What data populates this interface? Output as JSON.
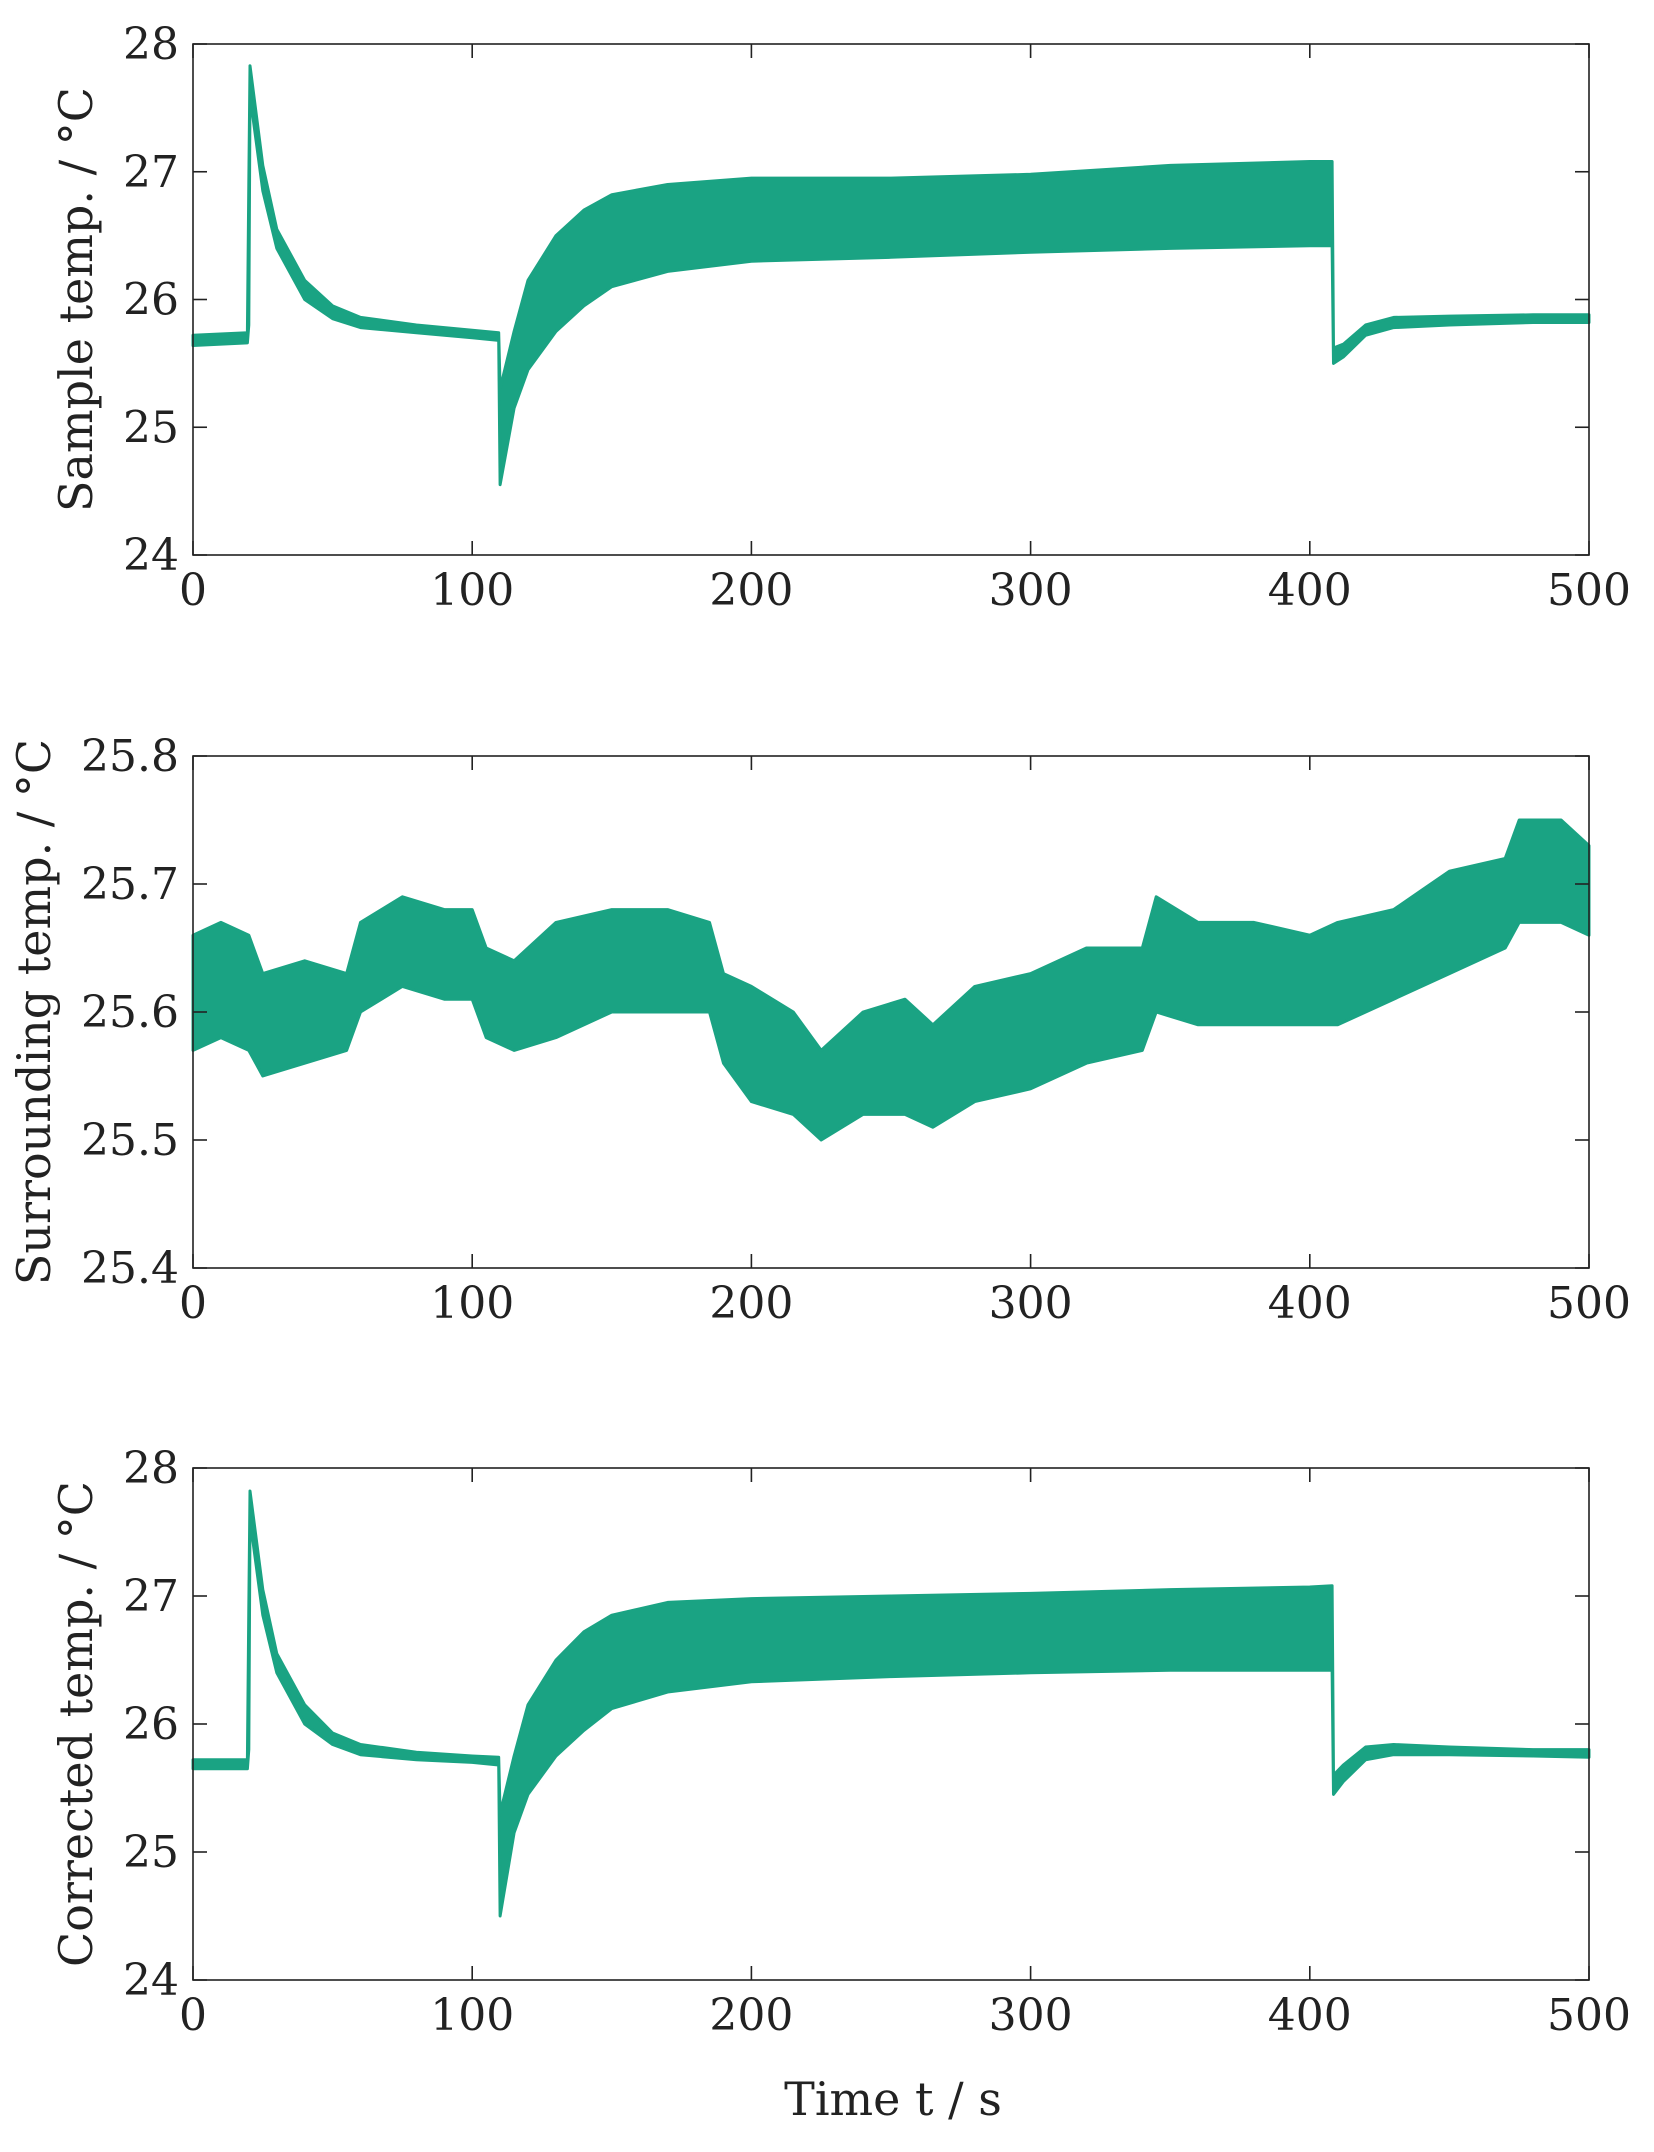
{
  "colors": {
    "series": "#1aa383",
    "axis": "#222222",
    "background": "#ffffff"
  },
  "x_axis_label_text": "Time t / s",
  "chart_data": [
    {
      "type": "line",
      "title": "",
      "ylabel": "Sample temp.  / °C",
      "xlabel": "",
      "xlim": [
        0,
        500
      ],
      "ylim": [
        24,
        28
      ],
      "xticks": [
        0,
        100,
        200,
        300,
        400,
        500
      ],
      "yticks": [
        24,
        25,
        26,
        27,
        28
      ],
      "xtick_labels": [
        "0",
        "100",
        "200",
        "300",
        "400",
        "500"
      ],
      "ytick_labels": [
        "24",
        "25",
        "26",
        "27",
        "28"
      ],
      "grid": false,
      "series": [
        {
          "name": "Sample temperature",
          "lower": [
            [
              0,
              25.64
            ],
            [
              19.5,
              25.66
            ],
            [
              20,
              25.8
            ],
            [
              20.4,
              27.6
            ],
            [
              25,
              26.85
            ],
            [
              30,
              26.4
            ],
            [
              40,
              26.0
            ],
            [
              50,
              25.85
            ],
            [
              60,
              25.78
            ],
            [
              80,
              25.74
            ],
            [
              100,
              25.7
            ],
            [
              109.5,
              25.68
            ],
            [
              110,
              24.55
            ],
            [
              115,
              25.15
            ],
            [
              120,
              25.45
            ],
            [
              130,
              25.75
            ],
            [
              140,
              25.95
            ],
            [
              150,
              26.1
            ],
            [
              170,
              26.22
            ],
            [
              200,
              26.3
            ],
            [
              250,
              26.33
            ],
            [
              300,
              26.37
            ],
            [
              350,
              26.4
            ],
            [
              400,
              26.42
            ],
            [
              408,
              26.42
            ],
            [
              408.5,
              25.5
            ],
            [
              412,
              25.55
            ],
            [
              420,
              25.72
            ],
            [
              430,
              25.78
            ],
            [
              450,
              25.8
            ],
            [
              480,
              25.82
            ],
            [
              500,
              25.82
            ]
          ],
          "upper": [
            [
              0,
              25.72
            ],
            [
              19.5,
              25.74
            ],
            [
              20,
              26.9
            ],
            [
              20.4,
              27.83
            ],
            [
              25,
              27.05
            ],
            [
              30,
              26.55
            ],
            [
              40,
              26.15
            ],
            [
              50,
              25.95
            ],
            [
              60,
              25.86
            ],
            [
              80,
              25.8
            ],
            [
              100,
              25.76
            ],
            [
              109.5,
              25.74
            ],
            [
              110,
              25.3
            ],
            [
              115,
              25.75
            ],
            [
              120,
              26.15
            ],
            [
              130,
              26.5
            ],
            [
              140,
              26.7
            ],
            [
              150,
              26.82
            ],
            [
              170,
              26.9
            ],
            [
              200,
              26.95
            ],
            [
              250,
              26.95
            ],
            [
              300,
              26.98
            ],
            [
              350,
              27.05
            ],
            [
              400,
              27.08
            ],
            [
              408,
              27.08
            ],
            [
              408.5,
              25.62
            ],
            [
              412,
              25.65
            ],
            [
              420,
              25.8
            ],
            [
              430,
              25.86
            ],
            [
              450,
              25.87
            ],
            [
              480,
              25.88
            ],
            [
              500,
              25.88
            ]
          ]
        }
      ]
    },
    {
      "type": "line",
      "title": "",
      "ylabel": "Surrounding temp.  / °C",
      "xlabel": "",
      "xlim": [
        0,
        500
      ],
      "ylim": [
        25.4,
        25.8
      ],
      "xticks": [
        0,
        100,
        200,
        300,
        400,
        500
      ],
      "yticks": [
        25.4,
        25.5,
        25.6,
        25.7,
        25.8
      ],
      "xtick_labels": [
        "0",
        "100",
        "200",
        "300",
        "400",
        "500"
      ],
      "ytick_labels": [
        "25.4",
        "25.5",
        "25.6",
        "25.7",
        "25.8"
      ],
      "grid": false,
      "series": [
        {
          "name": "Surrounding temperature",
          "lower": [
            [
              0,
              25.57
            ],
            [
              10,
              25.58
            ],
            [
              20,
              25.57
            ],
            [
              25,
              25.55
            ],
            [
              40,
              25.56
            ],
            [
              55,
              25.57
            ],
            [
              60,
              25.6
            ],
            [
              75,
              25.62
            ],
            [
              90,
              25.61
            ],
            [
              100,
              25.61
            ],
            [
              105,
              25.58
            ],
            [
              115,
              25.57
            ],
            [
              130,
              25.58
            ],
            [
              150,
              25.6
            ],
            [
              170,
              25.6
            ],
            [
              185,
              25.6
            ],
            [
              190,
              25.56
            ],
            [
              200,
              25.53
            ],
            [
              215,
              25.52
            ],
            [
              225,
              25.5
            ],
            [
              240,
              25.52
            ],
            [
              255,
              25.52
            ],
            [
              265,
              25.51
            ],
            [
              280,
              25.53
            ],
            [
              300,
              25.54
            ],
            [
              320,
              25.56
            ],
            [
              340,
              25.57
            ],
            [
              345,
              25.6
            ],
            [
              360,
              25.59
            ],
            [
              380,
              25.59
            ],
            [
              400,
              25.59
            ],
            [
              410,
              25.59
            ],
            [
              430,
              25.61
            ],
            [
              450,
              25.63
            ],
            [
              470,
              25.65
            ],
            [
              475,
              25.67
            ],
            [
              490,
              25.67
            ],
            [
              500,
              25.66
            ]
          ],
          "upper": [
            [
              0,
              25.66
            ],
            [
              10,
              25.67
            ],
            [
              20,
              25.66
            ],
            [
              25,
              25.63
            ],
            [
              40,
              25.64
            ],
            [
              55,
              25.63
            ],
            [
              60,
              25.67
            ],
            [
              75,
              25.69
            ],
            [
              90,
              25.68
            ],
            [
              100,
              25.68
            ],
            [
              105,
              25.65
            ],
            [
              115,
              25.64
            ],
            [
              130,
              25.67
            ],
            [
              150,
              25.68
            ],
            [
              170,
              25.68
            ],
            [
              185,
              25.67
            ],
            [
              190,
              25.63
            ],
            [
              200,
              25.62
            ],
            [
              215,
              25.6
            ],
            [
              225,
              25.57
            ],
            [
              240,
              25.6
            ],
            [
              255,
              25.61
            ],
            [
              265,
              25.59
            ],
            [
              280,
              25.62
            ],
            [
              300,
              25.63
            ],
            [
              320,
              25.65
            ],
            [
              340,
              25.65
            ],
            [
              345,
              25.69
            ],
            [
              360,
              25.67
            ],
            [
              380,
              25.67
            ],
            [
              400,
              25.66
            ],
            [
              410,
              25.67
            ],
            [
              430,
              25.68
            ],
            [
              450,
              25.71
            ],
            [
              470,
              25.72
            ],
            [
              475,
              25.75
            ],
            [
              490,
              25.75
            ],
            [
              500,
              25.73
            ]
          ]
        }
      ]
    },
    {
      "type": "line",
      "title": "",
      "ylabel": "Corrected temp.  / °C",
      "xlabel": "Time t / s",
      "xlim": [
        0,
        500
      ],
      "ylim": [
        24,
        28
      ],
      "xticks": [
        0,
        100,
        200,
        300,
        400,
        500
      ],
      "yticks": [
        24,
        25,
        26,
        27,
        28
      ],
      "xtick_labels": [
        "0",
        "100",
        "200",
        "300",
        "400",
        "500"
      ],
      "ytick_labels": [
        "24",
        "25",
        "26",
        "27",
        "28"
      ],
      "grid": false,
      "series": [
        {
          "name": "Corrected temperature",
          "lower": [
            [
              0,
              25.65
            ],
            [
              19.5,
              25.65
            ],
            [
              20,
              25.8
            ],
            [
              20.4,
              27.6
            ],
            [
              25,
              26.85
            ],
            [
              30,
              26.4
            ],
            [
              40,
              26.0
            ],
            [
              50,
              25.84
            ],
            [
              60,
              25.76
            ],
            [
              80,
              25.72
            ],
            [
              100,
              25.7
            ],
            [
              109.5,
              25.68
            ],
            [
              110,
              24.5
            ],
            [
              115,
              25.15
            ],
            [
              120,
              25.45
            ],
            [
              130,
              25.75
            ],
            [
              140,
              25.95
            ],
            [
              150,
              26.12
            ],
            [
              170,
              26.25
            ],
            [
              200,
              26.33
            ],
            [
              250,
              26.37
            ],
            [
              300,
              26.4
            ],
            [
              350,
              26.42
            ],
            [
              400,
              26.42
            ],
            [
              408,
              26.42
            ],
            [
              408.5,
              25.45
            ],
            [
              412,
              25.55
            ],
            [
              420,
              25.72
            ],
            [
              430,
              25.76
            ],
            [
              450,
              25.76
            ],
            [
              480,
              25.75
            ],
            [
              500,
              25.74
            ]
          ],
          "upper": [
            [
              0,
              25.72
            ],
            [
              19.5,
              25.72
            ],
            [
              20,
              26.9
            ],
            [
              20.4,
              27.82
            ],
            [
              25,
              27.05
            ],
            [
              30,
              26.55
            ],
            [
              40,
              26.15
            ],
            [
              50,
              25.93
            ],
            [
              60,
              25.84
            ],
            [
              80,
              25.78
            ],
            [
              100,
              25.75
            ],
            [
              109.5,
              25.74
            ],
            [
              110,
              25.3
            ],
            [
              115,
              25.75
            ],
            [
              120,
              26.15
            ],
            [
              130,
              26.5
            ],
            [
              140,
              26.72
            ],
            [
              150,
              26.85
            ],
            [
              170,
              26.95
            ],
            [
              200,
              26.98
            ],
            [
              250,
              27.0
            ],
            [
              300,
              27.02
            ],
            [
              350,
              27.05
            ],
            [
              400,
              27.07
            ],
            [
              408,
              27.08
            ],
            [
              408.5,
              25.6
            ],
            [
              412,
              25.68
            ],
            [
              420,
              25.82
            ],
            [
              430,
              25.84
            ],
            [
              450,
              25.82
            ],
            [
              480,
              25.8
            ],
            [
              500,
              25.8
            ]
          ]
        }
      ]
    }
  ]
}
